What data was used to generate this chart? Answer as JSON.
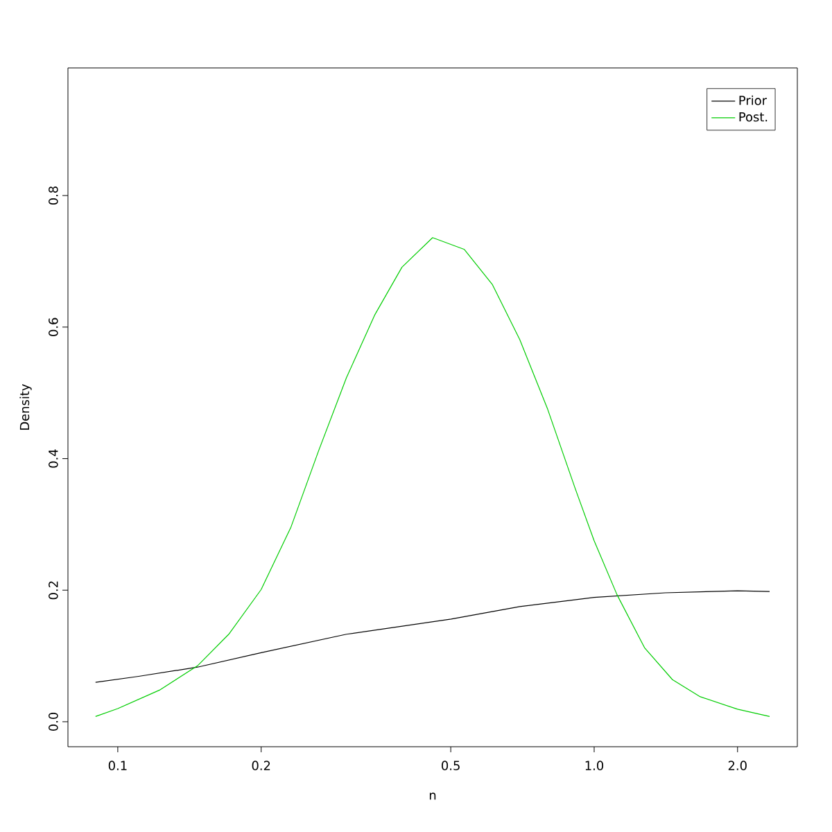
{
  "chart_data": {
    "type": "line",
    "xlabel": "n",
    "ylabel": "Density",
    "log": "x",
    "xlim": [
      0.0786,
      2.67
    ],
    "ylim": [
      -0.038,
      0.994
    ],
    "xticks": [
      0.1,
      0.2,
      0.5,
      {
        "value": 1,
        "label": "1.0"
      },
      {
        "value": 2,
        "label": "2.0"
      }
    ],
    "yticks": [
      {
        "value": 0,
        "label": "0.0"
      },
      0.2,
      0.4,
      0.6,
      0.8
    ],
    "legend": "top right",
    "grid": false,
    "marker": "none",
    "line_style": "solid",
    "series": [
      {
        "name": "Prior",
        "color": "#000000",
        "x": [
          0.0898,
          0.1106,
          0.147,
          0.2,
          0.302,
          0.501,
          0.698,
          1.0,
          1.41,
          2.0,
          2.335
        ],
        "values": [
          0.06,
          0.069,
          0.083,
          0.105,
          0.133,
          0.156,
          0.175,
          0.189,
          0.196,
          0.199,
          0.198
        ]
      },
      {
        "name": "Post.",
        "color": "#00cd00",
        "x": [
          0.0898,
          0.1,
          0.1223,
          0.147,
          0.171,
          0.2,
          0.231,
          0.264,
          0.302,
          0.346,
          0.395,
          0.458,
          0.534,
          0.611,
          0.698,
          0.799,
          0.913,
          1.0,
          1.117,
          1.277,
          1.46,
          1.67,
          2.0,
          2.335
        ],
        "values": [
          0.008,
          0.02,
          0.048,
          0.085,
          0.133,
          0.201,
          0.296,
          0.412,
          0.523,
          0.618,
          0.691,
          0.736,
          0.718,
          0.665,
          0.581,
          0.475,
          0.354,
          0.275,
          0.193,
          0.112,
          0.064,
          0.038,
          0.019,
          0.008
        ]
      }
    ]
  }
}
